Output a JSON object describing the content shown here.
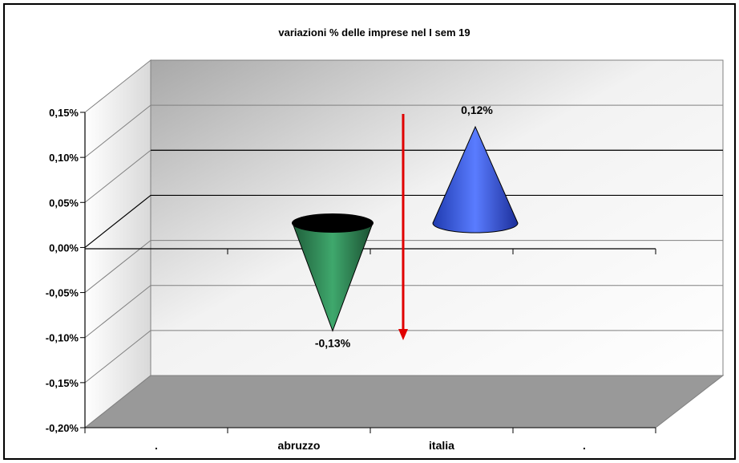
{
  "chart_data": {
    "type": "bar",
    "title": "variazioni % delle imprese nel I sem 19",
    "categories": [
      ".",
      "abruzzo",
      "italia",
      "."
    ],
    "series": [
      {
        "values": [
          null,
          -0.13,
          0.12,
          null
        ],
        "colors": [
          null,
          "#2e8b57",
          "#3355dd",
          null
        ]
      }
    ],
    "value_labels": [
      "",
      "-0,13%",
      "0,12%",
      ""
    ],
    "y_ticks": [
      "0,15%",
      "0,10%",
      "0,05%",
      "0,00%",
      "-0,05%",
      "-0,10%",
      "-0,15%",
      "-0,20%"
    ],
    "ylim": [
      -0.2,
      0.15
    ],
    "xlabel": "",
    "ylabel": "",
    "grid": true,
    "annotation": {
      "type": "arrow",
      "direction": "down",
      "color": "#e00000"
    },
    "style": "3d-cone"
  }
}
